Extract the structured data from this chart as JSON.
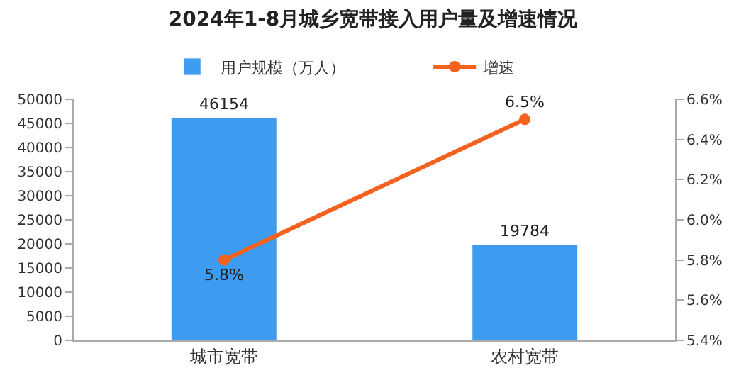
{
  "chart_data": {
    "type": "bar",
    "title": "2024年1-8月城乡宽带接入用户量及增速情况",
    "categories": [
      "城市宽带",
      "农村宽带"
    ],
    "series": [
      {
        "name": "用户规模（万人）",
        "color": "#3d9cf0",
        "values": [
          46154,
          19784
        ],
        "value_labels": [
          "46154",
          "19784"
        ]
      },
      {
        "name": "增速",
        "type": "line",
        "axis": "y2",
        "color": "#f5621f",
        "values": [
          5.8,
          6.5
        ],
        "value_labels": [
          "5.8%",
          "6.5%"
        ],
        "marker": "circle"
      }
    ],
    "ylim": [
      0,
      50000
    ],
    "yticks": [
      0,
      5000,
      10000,
      15000,
      20000,
      25000,
      30000,
      35000,
      40000,
      45000,
      50000
    ],
    "y2lim": [
      5.4,
      6.6
    ],
    "y2ticks": [
      {
        "value": 5.4,
        "label": "5.4%"
      },
      {
        "value": 5.6,
        "label": "5.6%"
      },
      {
        "value": 5.8,
        "label": "5.8%"
      },
      {
        "value": 6.0,
        "label": "6.0%"
      },
      {
        "value": 6.2,
        "label": "6.2%"
      },
      {
        "value": 6.4,
        "label": "6.4%"
      },
      {
        "value": 6.6,
        "label": "6.6%"
      }
    ],
    "legend": "top"
  }
}
